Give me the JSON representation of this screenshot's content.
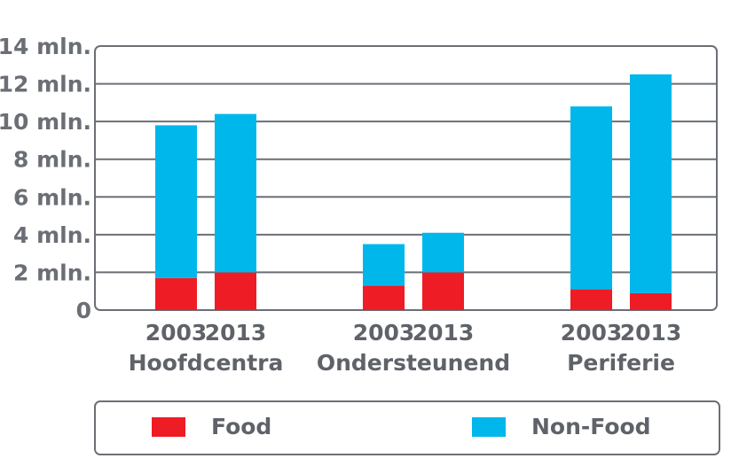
{
  "chart_data": {
    "type": "bar",
    "stacked": true,
    "groups": [
      {
        "label": "Hoofdcentra",
        "years": [
          "2003",
          "2013"
        ]
      },
      {
        "label": "Ondersteunend",
        "years": [
          "2003",
          "2013"
        ]
      },
      {
        "label": "Periferie",
        "years": [
          "2003",
          "2013"
        ]
      }
    ],
    "series": [
      {
        "name": "Food",
        "color": "#ee1c25",
        "values": [
          1.7,
          2.0,
          1.3,
          2.0,
          1.1,
          0.9
        ]
      },
      {
        "name": "Non-Food",
        "color": "#00b7ec",
        "values": [
          8.1,
          8.4,
          2.2,
          2.1,
          9.7,
          11.6
        ]
      }
    ],
    "yticks": [
      {
        "value": 0,
        "label": "0"
      },
      {
        "value": 2,
        "label": "2 mln."
      },
      {
        "value": 4,
        "label": "4 mln."
      },
      {
        "value": 6,
        "label": "6 mln."
      },
      {
        "value": 8,
        "label": "8 mln."
      },
      {
        "value": 10,
        "label": "10 mln."
      },
      {
        "value": 12,
        "label": "12 mln."
      },
      {
        "value": 14,
        "label": "14 mln."
      }
    ],
    "ylim": [
      0,
      14
    ],
    "grid": true,
    "legend_position": "bottom"
  }
}
